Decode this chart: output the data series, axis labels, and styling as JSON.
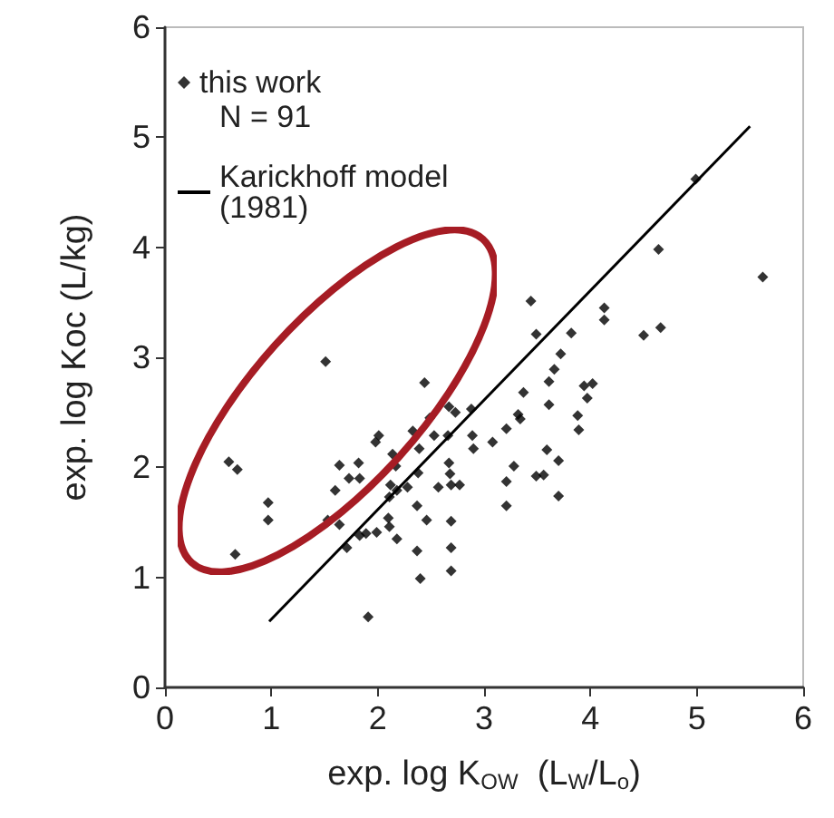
{
  "chart_data": {
    "type": "scatter",
    "xlabel": "exp. log K$_{OW}$  (L$_{W}$/L$_{o}$)",
    "ylabel": "exp. log Koc (L/kg)",
    "annotations": [
      "N = 91"
    ],
    "xlim": [
      0,
      6
    ],
    "ylim": [
      0,
      6
    ],
    "xticks": [
      0,
      1,
      2,
      3,
      4,
      5,
      6
    ],
    "yticks": [
      0,
      1,
      2,
      3,
      4,
      5,
      6
    ],
    "grid": false,
    "legend": "top left",
    "marker": "diamond",
    "series": [
      {
        "name": "this work",
        "color": "#000000",
        "x": [
          0.6,
          0.68,
          0.66,
          0.97,
          0.97,
          1.51,
          1.53,
          1.6,
          1.64,
          1.64,
          1.71,
          1.73,
          1.82,
          1.83,
          1.83,
          1.89,
          1.91,
          1.98,
          2.01,
          1.99,
          2.1,
          2.11,
          2.14,
          2.17,
          2.12,
          2.11,
          2.18,
          2.18,
          2.28,
          2.33,
          2.39,
          2.38,
          2.37,
          2.37,
          2.4,
          2.44,
          2.46,
          2.49,
          2.53,
          2.57,
          2.66,
          2.67,
          2.67,
          2.68,
          2.69,
          2.69,
          2.69,
          2.69,
          2.73,
          2.77,
          2.88,
          2.89,
          2.9,
          3.08,
          3.21,
          3.21,
          3.21,
          3.28,
          3.32,
          3.34,
          3.37,
          3.44,
          3.49,
          3.49,
          3.56,
          3.59,
          3.61,
          3.61,
          3.66,
          3.7,
          3.7,
          3.72,
          3.82,
          3.88,
          3.89,
          3.94,
          3.97,
          4.02,
          4.13,
          4.13,
          4.5,
          4.64,
          4.66,
          4.99,
          5.62
        ],
        "values": [
          2.05,
          1.98,
          1.21,
          1.68,
          1.52,
          2.96,
          1.52,
          1.79,
          2.02,
          1.48,
          1.27,
          1.9,
          2.04,
          1.9,
          1.38,
          1.4,
          0.64,
          2.23,
          2.29,
          1.41,
          1.54,
          1.46,
          2.12,
          2.01,
          1.84,
          1.73,
          1.35,
          1.79,
          1.82,
          2.33,
          2.17,
          1.95,
          1.65,
          1.24,
          0.99,
          2.77,
          1.52,
          2.45,
          2.29,
          1.82,
          2.29,
          2.55,
          2.04,
          1.94,
          1.84,
          1.51,
          1.27,
          1.06,
          2.5,
          1.84,
          2.53,
          2.29,
          2.17,
          2.23,
          2.35,
          1.87,
          1.65,
          2.01,
          2.48,
          2.44,
          2.68,
          3.51,
          3.21,
          1.92,
          1.93,
          2.16,
          2.78,
          2.57,
          2.89,
          2.06,
          1.74,
          3.03,
          3.22,
          2.47,
          2.34,
          2.74,
          2.63,
          2.76,
          3.45,
          3.34,
          3.2,
          3.98,
          3.27,
          4.62,
          3.73
        ]
      },
      {
        "name": "Karickhoff model\n(1981)",
        "type": "line",
        "color": "#000000",
        "line_style": "solid",
        "marker": "none",
        "x": [
          0.98,
          5.5
        ],
        "values": [
          0.6,
          5.1
        ]
      }
    ]
  }
}
